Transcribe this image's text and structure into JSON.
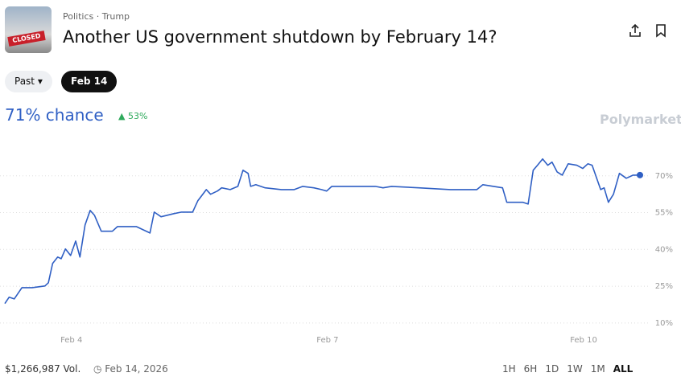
{
  "header": {
    "category": "Politics",
    "tag": "Trump",
    "title": "Another US government shutdown by February 14?"
  },
  "filters": {
    "past": "Past",
    "active": "Feb 14"
  },
  "summary": {
    "chance": "71% chance",
    "change": "53%",
    "brand": "Polymarket"
  },
  "chart_data": {
    "type": "line",
    "color": "#2f5fc4",
    "x": [
      3.22,
      3.27,
      3.33,
      3.42,
      3.54,
      3.69,
      3.73,
      3.78,
      3.84,
      3.88,
      3.93,
      3.99,
      4.05,
      4.1,
      4.16,
      4.22,
      4.27,
      4.35,
      4.48,
      4.54,
      4.76,
      4.92,
      4.97,
      5.05,
      5.2,
      5.29,
      5.42,
      5.48,
      5.58,
      5.63,
      5.71,
      5.76,
      5.86,
      5.95,
      6.01,
      6.07,
      6.1,
      6.16,
      6.27,
      6.46,
      6.61,
      6.71,
      6.84,
      6.93,
      6.99,
      7.05,
      7.31,
      7.56,
      7.65,
      7.75,
      8.07,
      8.44,
      8.75,
      8.82,
      9.05,
      9.1,
      9.29,
      9.35,
      9.41,
      9.46,
      9.52,
      9.58,
      9.63,
      9.69,
      9.75,
      9.82,
      9.92,
      9.99,
      10.05,
      10.1,
      10.2,
      10.24,
      10.29,
      10.35,
      10.42,
      10.5,
      10.58,
      10.66
    ],
    "values": [
      17.9,
      20.5,
      19.8,
      24.4,
      24.4,
      25.1,
      26.4,
      34.3,
      36.9,
      36.2,
      40.2,
      37.5,
      43.4,
      36.9,
      50,
      55.9,
      53.9,
      47.4,
      47.4,
      49.3,
      49.3,
      46.7,
      55.2,
      53.3,
      54.6,
      55.2,
      55.2,
      59.8,
      64.4,
      62.5,
      63.8,
      65.1,
      64.4,
      65.7,
      72.3,
      71,
      65.7,
      66.4,
      65.1,
      64.4,
      64.4,
      65.7,
      65.1,
      64.4,
      63.8,
      65.7,
      65.7,
      65.7,
      65.1,
      65.7,
      65.1,
      64.4,
      64.4,
      66.4,
      65.1,
      59.2,
      59.2,
      58.5,
      72.3,
      74.3,
      76.9,
      74.3,
      75.6,
      71.6,
      70.3,
      74.9,
      74.3,
      73,
      74.9,
      74.3,
      64.4,
      65.1,
      59.2,
      62.5,
      71,
      69,
      70.3,
      70.3
    ],
    "xlim": [
      3.22,
      10.66
    ],
    "xticks": [
      {
        "value": 4,
        "label": "Feb 4"
      },
      {
        "value": 7,
        "label": "Feb 7"
      },
      {
        "value": 10,
        "label": "Feb 10"
      }
    ],
    "ylim": [
      7,
      85
    ],
    "yticks": [
      {
        "value": 10,
        "label": "10%"
      },
      {
        "value": 25,
        "label": "25%"
      },
      {
        "value": 40,
        "label": "40%"
      },
      {
        "value": 55,
        "label": "55%"
      },
      {
        "value": 70,
        "label": "70%"
      }
    ],
    "grid": true
  },
  "footer": {
    "volume": "$1,266,987 Vol.",
    "date": "Feb 14, 2026",
    "ranges": [
      "1H",
      "6H",
      "1D",
      "1W",
      "1M",
      "ALL"
    ]
  }
}
